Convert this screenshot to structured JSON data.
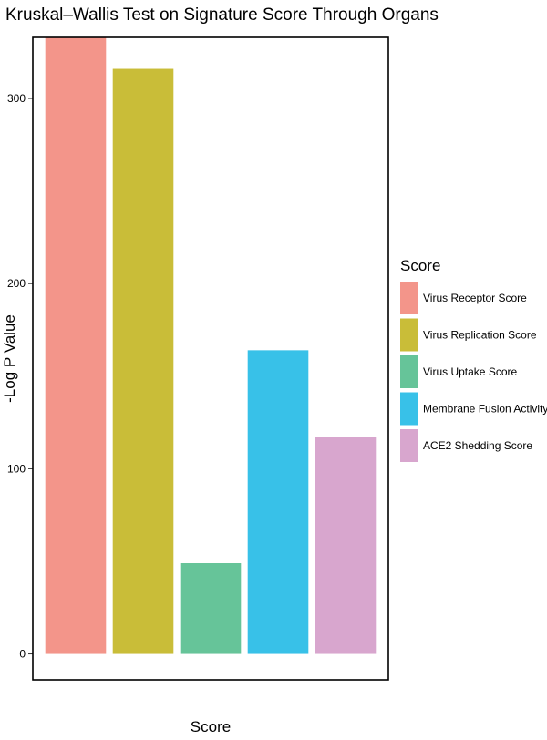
{
  "chart_data": {
    "type": "bar",
    "title": "Kruskal–Wallis Test on Signature Score Through Organs",
    "xlabel": "Score",
    "ylabel": "-Log P Value",
    "ylim": [
      -14,
      333
    ],
    "yticks": [
      0,
      100,
      200,
      300
    ],
    "grid": false,
    "legend_title": "Score",
    "legend_position": "right",
    "categories": [
      "Virus Receptor Score",
      "Virus Replication Score",
      "Virus Uptake Score",
      "Membrane Fusion Activity Score",
      "ACE2 Shedding Score"
    ],
    "values": [
      333,
      316,
      49,
      164,
      117
    ],
    "colors": [
      "#F3958A",
      "#C9BD38",
      "#66C499",
      "#38C1E8",
      "#D8A6CE"
    ]
  }
}
